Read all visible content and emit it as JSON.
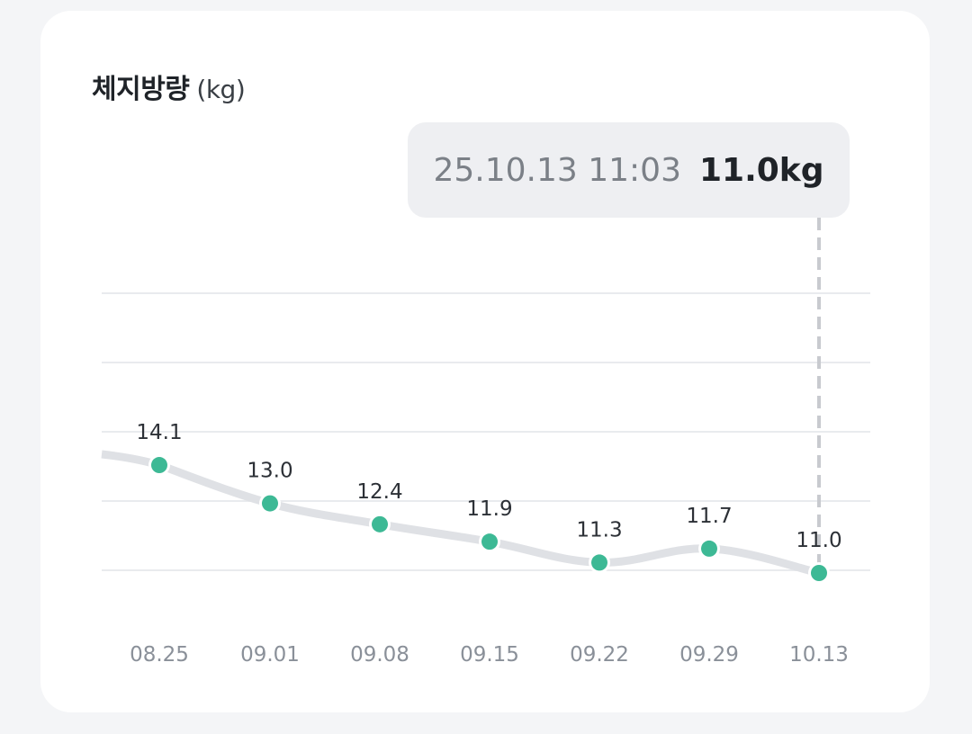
{
  "chart_data": {
    "type": "line",
    "title": "체지방량",
    "unit": "(kg)",
    "categories": [
      "08.25",
      "09.01",
      "09.08",
      "09.15",
      "09.22",
      "09.29",
      "10.13"
    ],
    "values": [
      14.1,
      13.0,
      12.4,
      11.9,
      11.3,
      11.7,
      11.0
    ],
    "data_labels": [
      "14.1",
      "13.0",
      "12.4",
      "11.9",
      "11.3",
      "11.7",
      "11.0"
    ],
    "grid": true,
    "colors": {
      "point": "#3db995",
      "line": "#dfe1e5",
      "grid": "#e9ebee",
      "crosshair": "#c8cacf"
    }
  },
  "tooltip": {
    "datetime": "25.10.13 11:03",
    "value": "11.0kg"
  }
}
